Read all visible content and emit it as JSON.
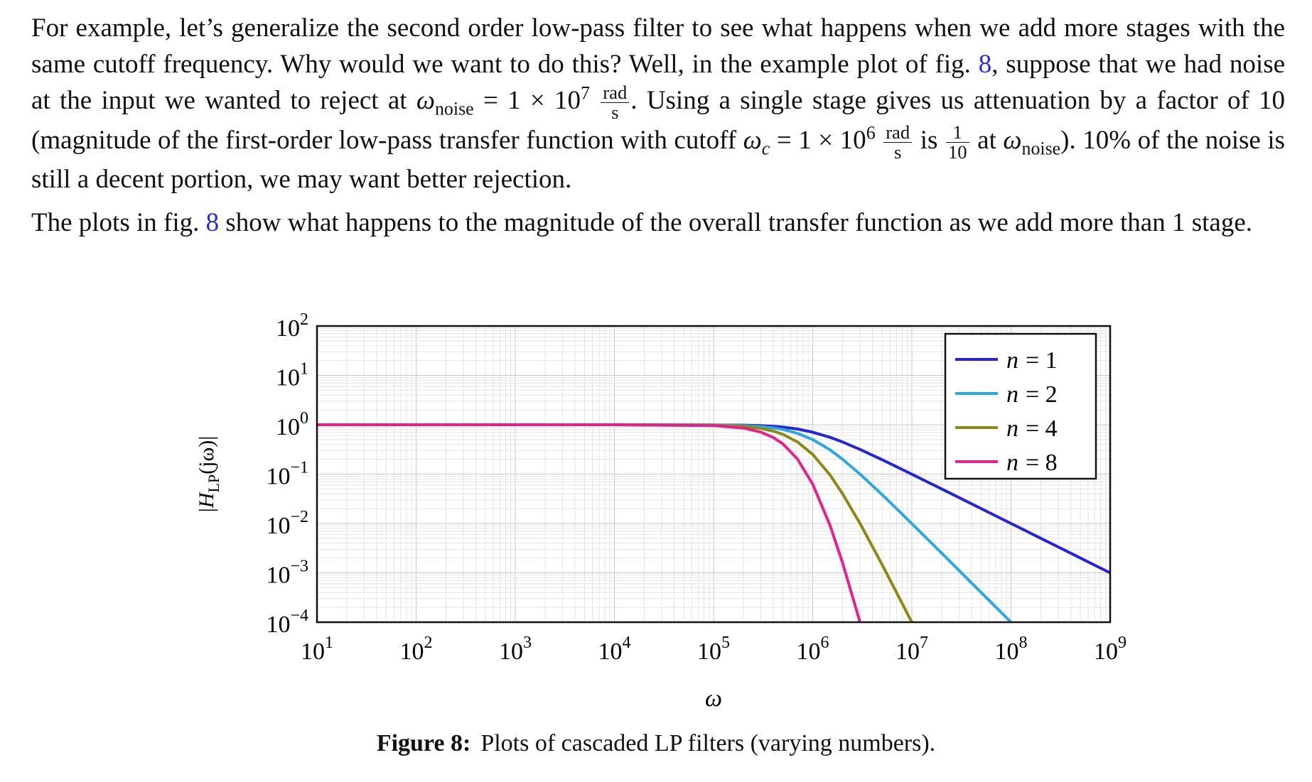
{
  "paragraph1": {
    "t1": "For example, let’s generalize the second order low-pass filter to see what happens when we add more stages with the same cutoff frequency. Why would we want to do this? Well, in the example plot of fig.",
    "ref": "8",
    "t2": ", suppose that we had noise at the input we wanted to reject at",
    "omega_noise_sym": "ω",
    "omega_noise_sub": "noise",
    "eq_noise": "= 1 × 10",
    "exp_noise": "7",
    "rad": "rad",
    "s": "s",
    "t3": ". Using a single stage gives us attenuation by a factor of 10 (magnitude of the first-order low-pass transfer function with cutoff",
    "omega_c_sym": "ω",
    "omega_c_sub": "c",
    "eq_c": "= 1 × 10",
    "exp_c": "6",
    "t4": "is",
    "frac_num": "1",
    "frac_den": "10",
    "t5": "at",
    "t6": "). 10% of the noise is still a decent portion, we may want better rejection."
  },
  "paragraph2": {
    "t1": "The plots in fig.",
    "ref": "8",
    "t2": "show what happens to the magnitude of the overall transfer function as we add more than 1 stage."
  },
  "caption": {
    "label": "Figure 8:",
    "text": "Plots of cascaded LP filters (varying numbers)."
  },
  "chart_data": {
    "type": "line",
    "title": "",
    "xlabel": "ω",
    "ylabel": "|H_LP(jω)|",
    "x_scale": "log",
    "y_scale": "log",
    "xlim": [
      10,
      1000000000
    ],
    "ylim": [
      0.0001,
      100
    ],
    "grid": true,
    "legend_position": "top-right",
    "x_tick_labels": [
      {
        "base": "10",
        "exp": "1"
      },
      {
        "base": "10",
        "exp": "2"
      },
      {
        "base": "10",
        "exp": "3"
      },
      {
        "base": "10",
        "exp": "4"
      },
      {
        "base": "10",
        "exp": "5"
      },
      {
        "base": "10",
        "exp": "6"
      },
      {
        "base": "10",
        "exp": "7"
      },
      {
        "base": "10",
        "exp": "8"
      },
      {
        "base": "10",
        "exp": "9"
      }
    ],
    "y_tick_labels": [
      {
        "base": "10",
        "exp": "2"
      },
      {
        "base": "10",
        "exp": "1"
      },
      {
        "base": "10",
        "exp": "0"
      },
      {
        "base": "10",
        "exp": "−1"
      },
      {
        "base": "10",
        "exp": "−2"
      },
      {
        "base": "10",
        "exp": "−3"
      },
      {
        "base": "10",
        "exp": "−4"
      }
    ],
    "cutoff": 1000000,
    "x": [
      10,
      100,
      1000,
      10000,
      100000,
      200000,
      300000,
      400000,
      500000,
      700000,
      1000000,
      1500000,
      2000000,
      3000000,
      5000000,
      7000000,
      10000000,
      20000000,
      50000000,
      100000000,
      200000000,
      500000000,
      1000000000
    ],
    "series": [
      {
        "name": "n = 1",
        "legend_lhs": "n",
        "legend_rhs": "= 1",
        "color": "#2424e0",
        "values": [
          1.0,
          1.0,
          1.0,
          1.0,
          0.995,
          0.981,
          0.958,
          0.928,
          0.894,
          0.819,
          0.707,
          0.555,
          0.447,
          0.316,
          0.196,
          0.141,
          0.0995,
          0.05,
          0.02,
          0.01,
          0.005,
          0.002,
          0.001
        ]
      },
      {
        "name": "n = 2",
        "legend_lhs": "n",
        "legend_rhs": "= 2",
        "color": "#2aa8e0",
        "values": [
          1.0,
          1.0,
          1.0,
          1.0,
          0.99,
          0.962,
          0.917,
          0.862,
          0.8,
          0.671,
          0.5,
          0.308,
          0.2,
          0.1,
          0.0385,
          0.02,
          0.0099,
          0.0025,
          0.0004,
          0.0001,
          null,
          null,
          null
        ]
      },
      {
        "name": "n = 4",
        "legend_lhs": "n",
        "legend_rhs": "= 4",
        "color": "#8a8a12",
        "values": [
          1.0,
          1.0,
          1.0,
          1.0,
          0.98,
          0.925,
          0.842,
          0.743,
          0.64,
          0.45,
          0.25,
          0.095,
          0.04,
          0.01,
          0.00148,
          0.0004,
          0.0001,
          null,
          null,
          null,
          null,
          null,
          null
        ]
      },
      {
        "name": "n = 8",
        "legend_lhs": "n",
        "legend_rhs": "= 8",
        "color": "#e8208a",
        "values": [
          1.0,
          1.0,
          1.0,
          1.0,
          0.961,
          0.855,
          0.709,
          0.552,
          0.41,
          0.203,
          0.0625,
          0.009,
          0.0016,
          0.0001,
          null,
          null,
          null,
          null,
          null,
          null,
          null,
          null,
          null
        ]
      }
    ]
  }
}
